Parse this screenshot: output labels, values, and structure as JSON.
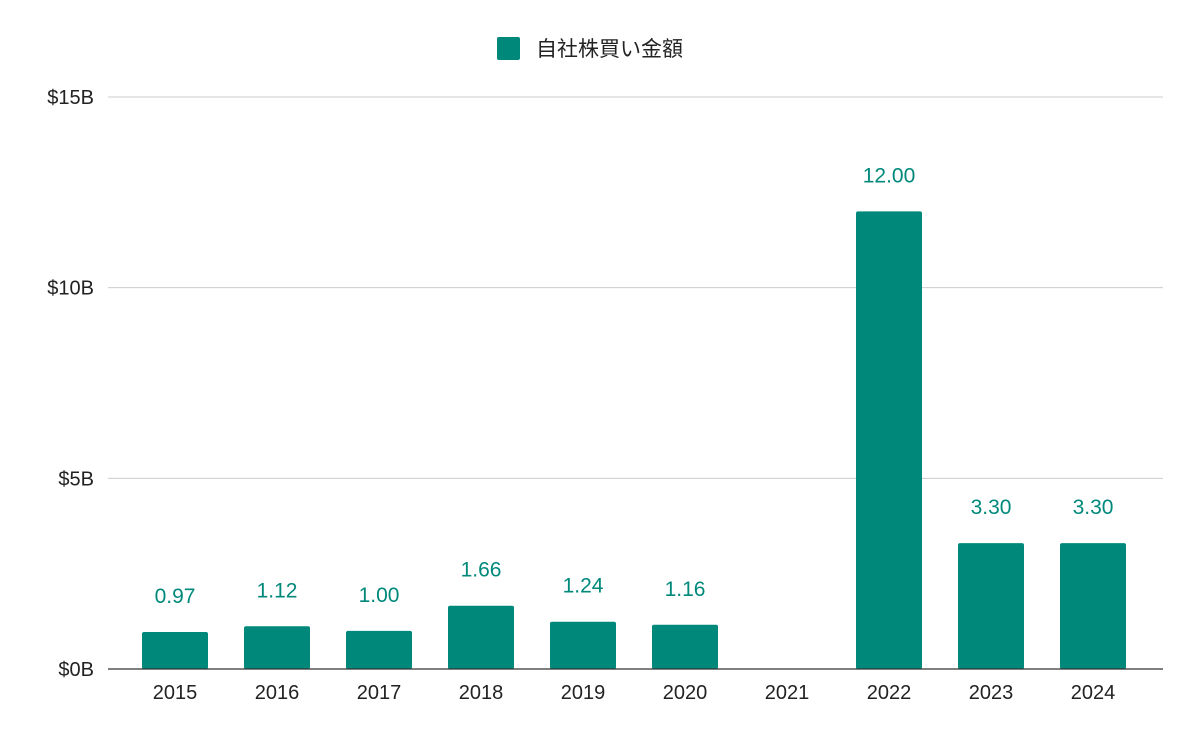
{
  "colors": {
    "bar": "#00897b",
    "label": "#00897b"
  },
  "chart_data": {
    "type": "bar",
    "title": "",
    "xlabel": "",
    "ylabel": "",
    "categories": [
      "2015",
      "2016",
      "2017",
      "2018",
      "2019",
      "2020",
      "2021",
      "2022",
      "2023",
      "2024"
    ],
    "series": [
      {
        "name": "自社株買い金額",
        "values": [
          0.97,
          1.12,
          1.0,
          1.66,
          1.24,
          1.16,
          null,
          12.0,
          3.3,
          3.3
        ],
        "data_labels": [
          "0.97",
          "1.12",
          "1.00",
          "1.66",
          "1.24",
          "1.16",
          "",
          "12.00",
          "3.30",
          "3.30"
        ]
      }
    ],
    "ylim": [
      0,
      15
    ],
    "yticks": [
      {
        "value": 0,
        "label": "$0B"
      },
      {
        "value": 5,
        "label": "$5B"
      },
      {
        "value": 10,
        "label": "$10B"
      },
      {
        "value": 15,
        "label": "$15B"
      }
    ],
    "grid": true,
    "legend_position": "top-center"
  }
}
